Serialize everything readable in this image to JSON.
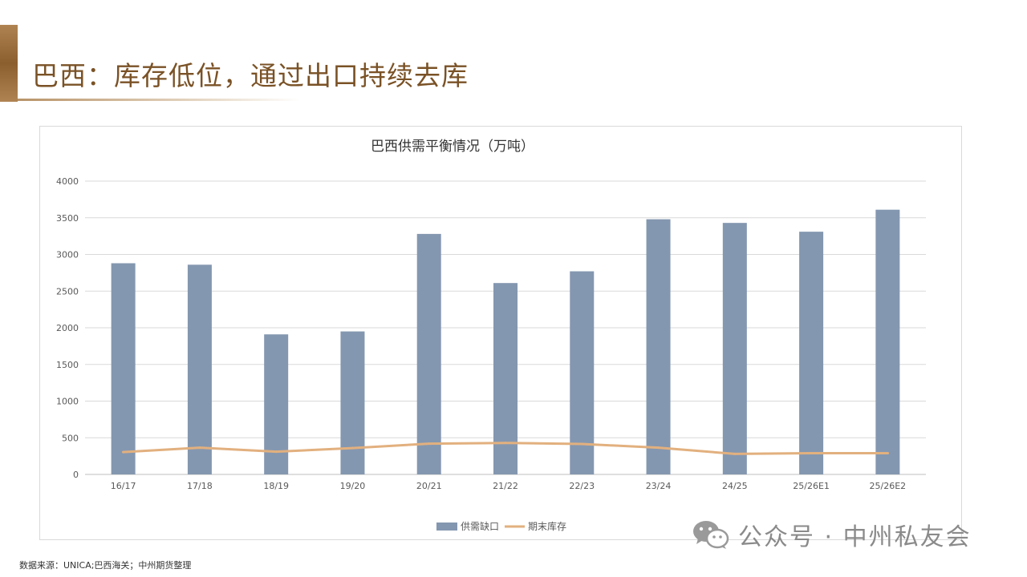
{
  "page": {
    "title": "巴西：库存低位，通过出口持续去库",
    "source": "数据来源：UNICA;巴西海关；中州期货整理",
    "watermark": "公众号 · 中州私友会",
    "watermark_icon": "wechat-icon"
  },
  "colors": {
    "title": "#7a5226",
    "bar": "#8497b0",
    "line": "#e2b07e",
    "grid": "#d9d9d9",
    "axis_text": "#595959"
  },
  "chart_data": {
    "type": "bar",
    "title": "巴西供需平衡情况（万吨）",
    "xlabel": "",
    "ylabel": "",
    "categories": [
      "16/17",
      "17/18",
      "18/19",
      "19/20",
      "20/21",
      "21/22",
      "22/23",
      "23/24",
      "24/25",
      "25/26E1",
      "25/26E2"
    ],
    "ylim": [
      0,
      4000
    ],
    "yticks": [
      0,
      500,
      1000,
      1500,
      2000,
      2500,
      3000,
      3500,
      4000
    ],
    "grid": true,
    "legend": "bottom",
    "series": [
      {
        "name": "供需缺口",
        "type": "bar",
        "values": [
          2880,
          2860,
          1910,
          1950,
          3280,
          2610,
          2770,
          3480,
          3430,
          3310,
          3610
        ]
      },
      {
        "name": "期末库存",
        "type": "line",
        "values": [
          305,
          365,
          310,
          360,
          420,
          430,
          415,
          365,
          280,
          290,
          290
        ]
      }
    ]
  }
}
